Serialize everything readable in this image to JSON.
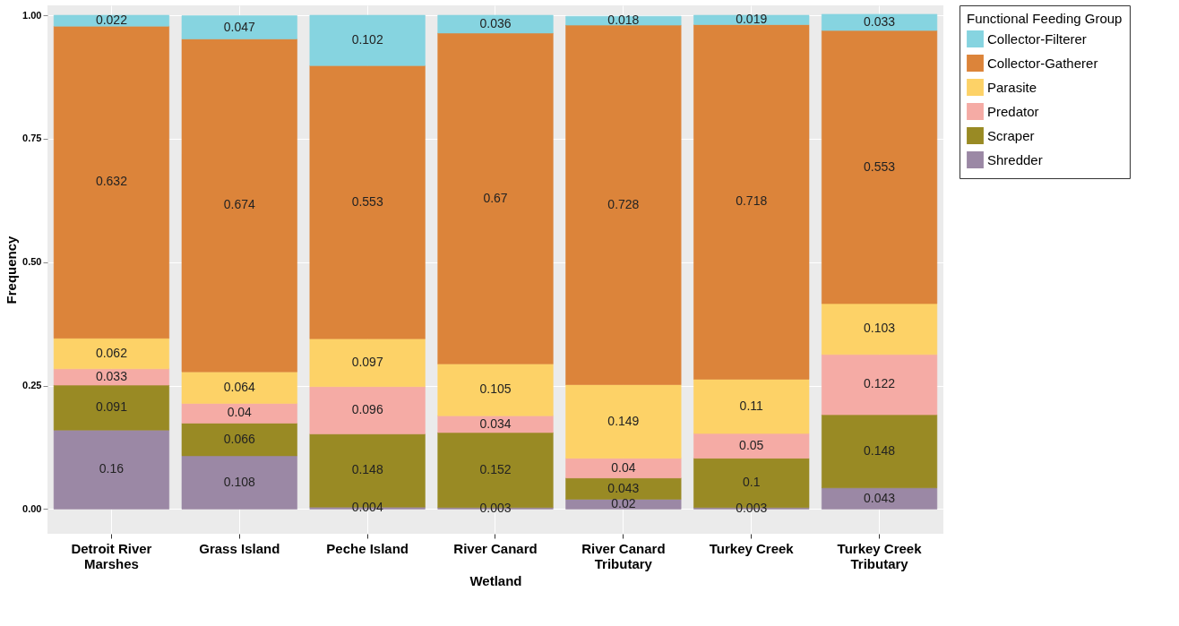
{
  "chart_data": {
    "type": "bar",
    "stacked": true,
    "xlabel": "Wetland",
    "ylabel": "Frequency",
    "legend_title": "Functional Feeding Group",
    "legend": "right",
    "grid": true,
    "data_labels": true,
    "categories": [
      "Detroit River Marshes",
      "Grass Island",
      "Peche Island",
      "River Canard",
      "River Canard Tributary",
      "Turkey Creek",
      "Turkey Creek Tributary"
    ],
    "ylim": [
      -0.05,
      1.02
    ],
    "yticks": [
      {
        "value": 0,
        "label": "0.00"
      },
      {
        "value": 0.25,
        "label": "0.25"
      },
      {
        "value": 0.5,
        "label": "0.50"
      },
      {
        "value": 0.75,
        "label": "0.75"
      },
      {
        "value": 1,
        "label": "1.00"
      }
    ],
    "series": [
      {
        "name": "Shredder",
        "color": "#9b88a5",
        "values": [
          0.16,
          0.108,
          0.004,
          0.003,
          0.02,
          0.003,
          0.043
        ]
      },
      {
        "name": "Scraper",
        "color": "#998a24",
        "values": [
          0.091,
          0.066,
          0.148,
          0.152,
          0.043,
          0.1,
          0.148
        ]
      },
      {
        "name": "Predator",
        "color": "#f5aba5",
        "values": [
          0.033,
          0.04,
          0.096,
          0.034,
          0.04,
          0.05,
          0.122
        ]
      },
      {
        "name": "Parasite",
        "color": "#fdd267",
        "values": [
          0.062,
          0.064,
          0.097,
          0.105,
          0.149,
          0.11,
          0.103
        ]
      },
      {
        "name": "Collector-Gatherer",
        "color": "#dc843a",
        "values": [
          0.632,
          0.674,
          0.553,
          0.67,
          0.728,
          0.718,
          0.553
        ]
      },
      {
        "name": "Collector-Filterer",
        "color": "#86d4e0",
        "values": [
          0.022,
          0.047,
          0.102,
          0.036,
          0.018,
          0.019,
          0.033
        ]
      }
    ]
  }
}
